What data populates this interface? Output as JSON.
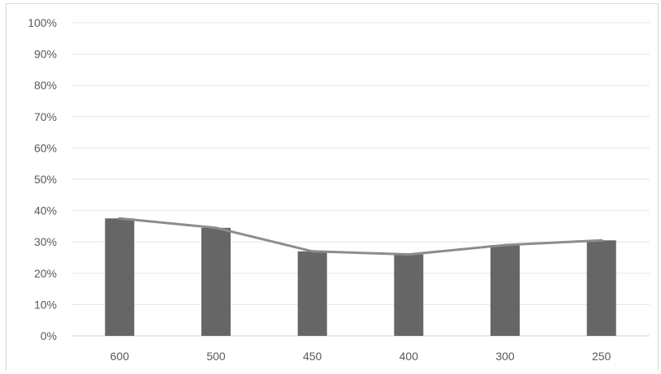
{
  "chart_data": {
    "type": "bar",
    "categories": [
      "600",
      "500",
      "450",
      "400",
      "300",
      "250"
    ],
    "series": [
      {
        "type": "bar",
        "values": [
          37.5,
          34.5,
          27.0,
          26.0,
          29.0,
          30.5
        ]
      },
      {
        "type": "line",
        "values": [
          37.5,
          34.5,
          27.0,
          26.0,
          29.0,
          30.5
        ]
      }
    ],
    "ylim": [
      0,
      100
    ],
    "yticks": [
      "0%",
      "10%",
      "20%",
      "30%",
      "40%",
      "50%",
      "60%",
      "70%",
      "80%",
      "90%",
      "100%"
    ],
    "grid": true,
    "legend": "none",
    "colors": {
      "bar": "#666666",
      "line": "#8c8c8c",
      "grid": "#e6e6e6",
      "text": "#595959"
    }
  }
}
